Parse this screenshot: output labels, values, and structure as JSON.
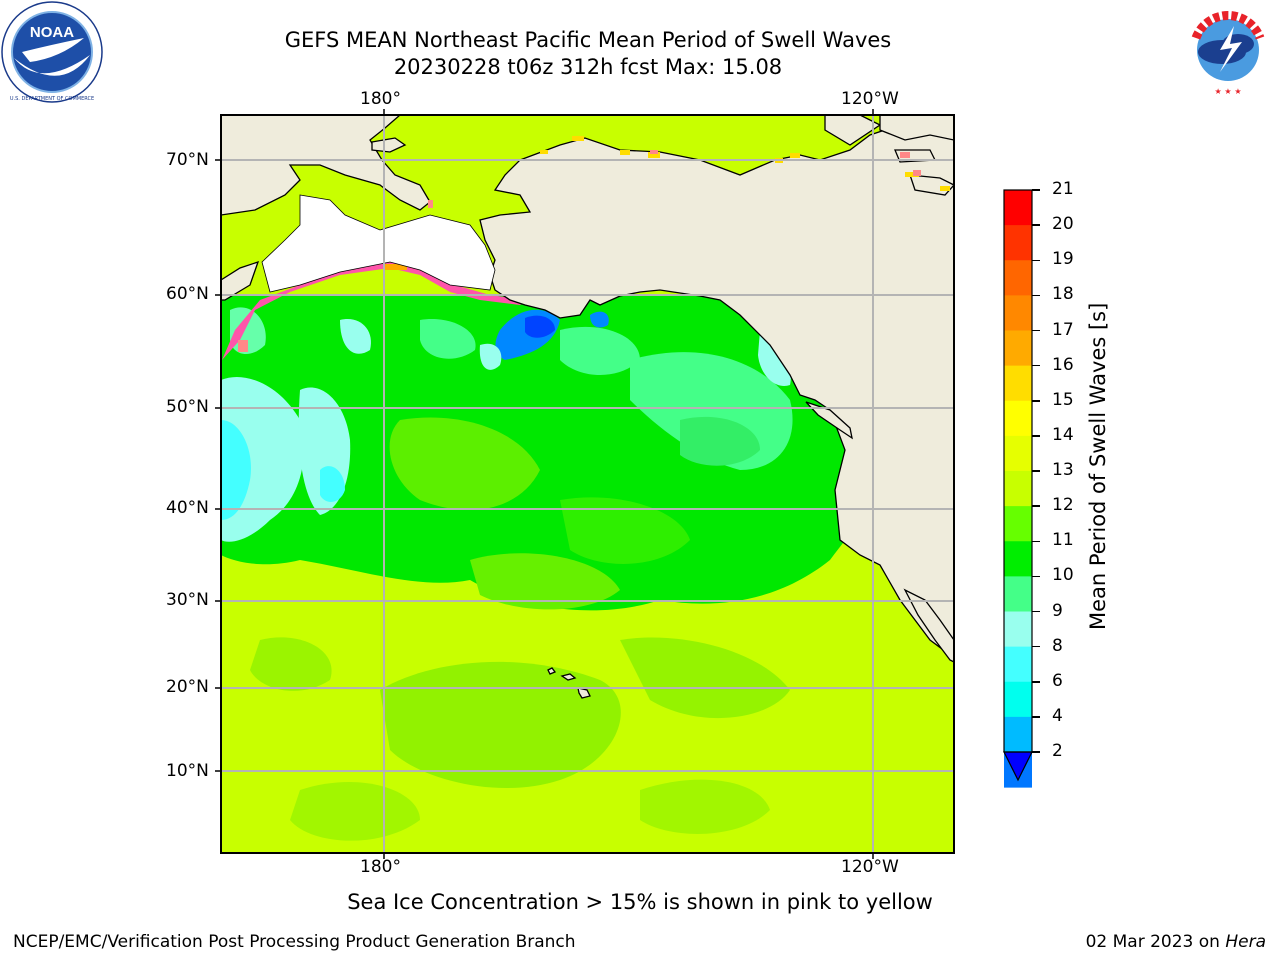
{
  "title": {
    "line1": "GEFS MEAN Northeast Pacific Mean Period of Swell Waves",
    "line2": "20230228 t06z 312h fcst   Max: 15.08"
  },
  "logos": {
    "left": {
      "name": "NOAA",
      "text": "NOAA",
      "ring_text": "NATIONAL OCEANIC AND ATMOSPHERIC ADMINISTRATION · U.S. DEPARTMENT OF COMMERCE"
    },
    "right": {
      "name": "National Weather Service",
      "ring_text": "NATIONAL WEATHER SERVICE"
    }
  },
  "map": {
    "lon_labels_top": [
      "180°",
      "120°W"
    ],
    "lon_labels_bottom": [
      "180°",
      "120°W"
    ],
    "lat_labels": [
      "70°N",
      "60°N",
      "50°N",
      "40°N",
      "30°N",
      "20°N",
      "10°N"
    ],
    "colors": {
      "land": "#efecdc",
      "ocean_base": "#c8ff00",
      "grid": "#b4b4b4"
    }
  },
  "colorbar": {
    "label": "Mean Period of Swell Waves [s]",
    "ticks": [
      "21",
      "20",
      "19",
      "18",
      "17",
      "16",
      "15",
      "14",
      "13",
      "12",
      "11",
      "10",
      "9",
      "8",
      "6",
      "4",
      "2"
    ],
    "colors": [
      "#ff0000",
      "#ff3300",
      "#ff6600",
      "#ff8800",
      "#ffaa00",
      "#ffdd00",
      "#ffff00",
      "#e6ff00",
      "#c8ff00",
      "#66ff00",
      "#00ee00",
      "#44ff88",
      "#99ffee",
      "#44ffff",
      "#00ffee",
      "#00bbff",
      "#0077ff"
    ],
    "extend_color": "#0000ff"
  },
  "note": "Sea Ice Concentration > 15% is shown in pink to yellow",
  "footer": {
    "left": "NCEP/EMC/Verification Post Processing Product Generation Branch",
    "right_prefix": "02 Mar 2023 on ",
    "right_machine": "Hera"
  }
}
